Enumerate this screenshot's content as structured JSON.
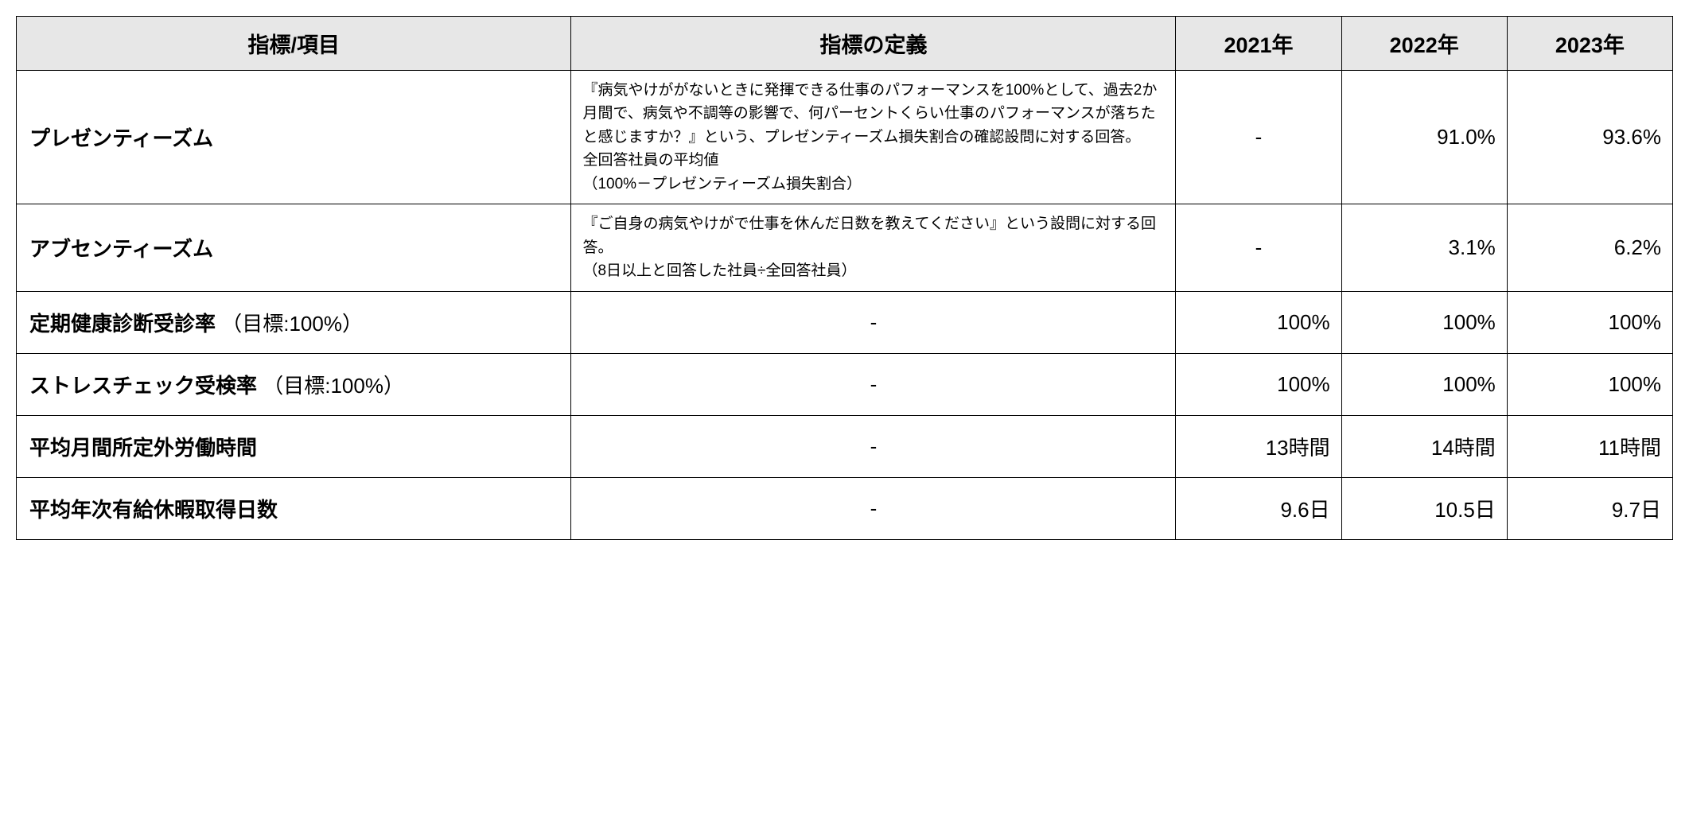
{
  "table": {
    "header_bg": "#e7e7e7",
    "border_color": "#000000",
    "columns": [
      "指標/項目",
      "指標の定義",
      "2021年",
      "2022年",
      "2023年"
    ],
    "rows": [
      {
        "metric": "プレゼンティーズム",
        "target": "",
        "definition": "『病気やけががないときに発揮できる仕事のパフォーマンスを100%として、過去2か月間で、病気や不調等の影響で、何パーセントくらい仕事のパフォーマンスが落ちたと感じますか？』という、プレゼンティーズム損失割合の確認設問に対する回答。\n全回答社員の平均値\n（100%－プレゼンティーズム損失割合）",
        "def_centered": false,
        "y2021": "-",
        "y2021_centered": true,
        "y2022": "91.0%",
        "y2022_centered": false,
        "y2023": "93.6%",
        "y2023_centered": false
      },
      {
        "metric": "アブセンティーズム",
        "target": "",
        "definition": "『ご自身の病気やけがで仕事を休んだ日数を教えてください』という設問に対する回答。\n（8日以上と回答した社員÷全回答社員）",
        "def_centered": false,
        "y2021": "-",
        "y2021_centered": true,
        "y2022": "3.1%",
        "y2022_centered": false,
        "y2023": "6.2%",
        "y2023_centered": false
      },
      {
        "metric": "定期健康診断受診率",
        "target": "（目標:100%）",
        "definition": "-",
        "def_centered": true,
        "y2021": "100%",
        "y2021_centered": false,
        "y2022": "100%",
        "y2022_centered": false,
        "y2023": "100%",
        "y2023_centered": false
      },
      {
        "metric": "ストレスチェック受検率",
        "target": "（目標:100%）",
        "definition": "-",
        "def_centered": true,
        "y2021": "100%",
        "y2021_centered": false,
        "y2022": "100%",
        "y2022_centered": false,
        "y2023": "100%",
        "y2023_centered": false
      },
      {
        "metric": "平均月間所定外労働時間",
        "target": "",
        "definition": "-",
        "def_centered": true,
        "y2021": "13時間",
        "y2021_centered": false,
        "y2022": "14時間",
        "y2022_centered": false,
        "y2023": "11時間",
        "y2023_centered": false
      },
      {
        "metric": "平均年次有給休暇取得日数",
        "target": "",
        "definition": "-",
        "def_centered": true,
        "y2021": "9.6日",
        "y2021_centered": false,
        "y2022": "10.5日",
        "y2022_centered": false,
        "y2023": "9.7日",
        "y2023_centered": false
      }
    ]
  }
}
